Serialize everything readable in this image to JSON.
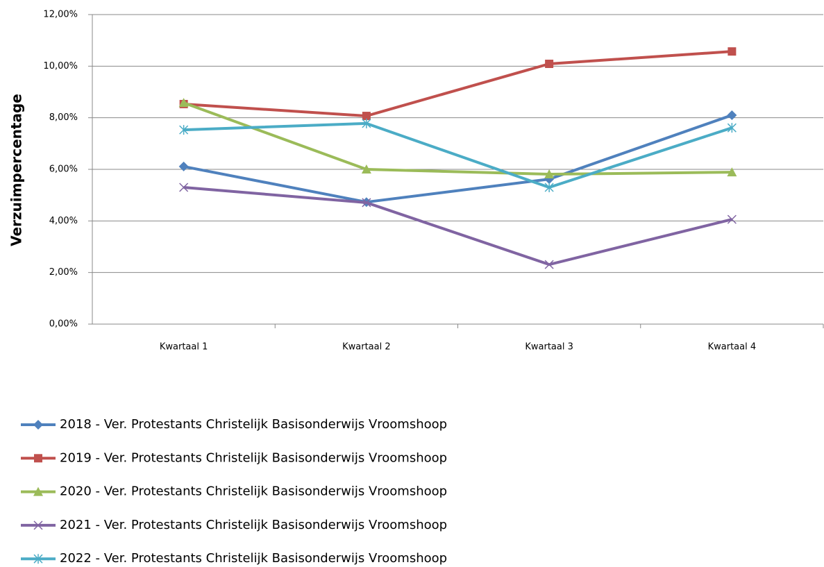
{
  "chart_data": {
    "type": "line",
    "y_label": "Verzuimpercentage",
    "categories": [
      "Kwartaal 1",
      "Kwartaal 2",
      "Kwartaal 3",
      "Kwartaal 4"
    ],
    "series": [
      {
        "name": "2018 - Ver. Protestants Christelijk Basisonderwijs Vroomshoop",
        "color": "#4f81bd",
        "marker": "diamond",
        "values": [
          6.11,
          4.73,
          5.62,
          8.1
        ]
      },
      {
        "name": "2019 - Ver. Protestants Christelijk Basisonderwijs Vroomshoop",
        "color": "#c0504d",
        "marker": "square",
        "values": [
          8.53,
          8.07,
          10.09,
          10.57
        ]
      },
      {
        "name": "2020 - Ver. Protestants Christelijk Basisonderwijs Vroomshoop",
        "color": "#9bbb59",
        "marker": "triangle",
        "values": [
          8.58,
          6.0,
          5.81,
          5.89
        ]
      },
      {
        "name": "2021 - Ver. Protestants Christelijk Basisonderwijs Vroomshoop",
        "color": "#8064a2",
        "marker": "x",
        "values": [
          5.3,
          4.71,
          2.31,
          4.06
        ]
      },
      {
        "name": "2022 - Ver. Protestants Christelijk Basisonderwijs Vroomshoop",
        "color": "#4bacc6",
        "marker": "star",
        "values": [
          7.53,
          7.78,
          5.3,
          7.61
        ]
      }
    ],
    "ylim": [
      0,
      12
    ],
    "yticks": [
      {
        "value": 0,
        "label": "0,00%"
      },
      {
        "value": 2,
        "label": "2,00%"
      },
      {
        "value": 4,
        "label": "4,00%"
      },
      {
        "value": 6,
        "label": "6,00%"
      },
      {
        "value": 8,
        "label": "8,00%"
      },
      {
        "value": 10,
        "label": "10,00%"
      },
      {
        "value": 12,
        "label": "12,00%"
      }
    ],
    "grid": true,
    "legend": "bottom"
  }
}
